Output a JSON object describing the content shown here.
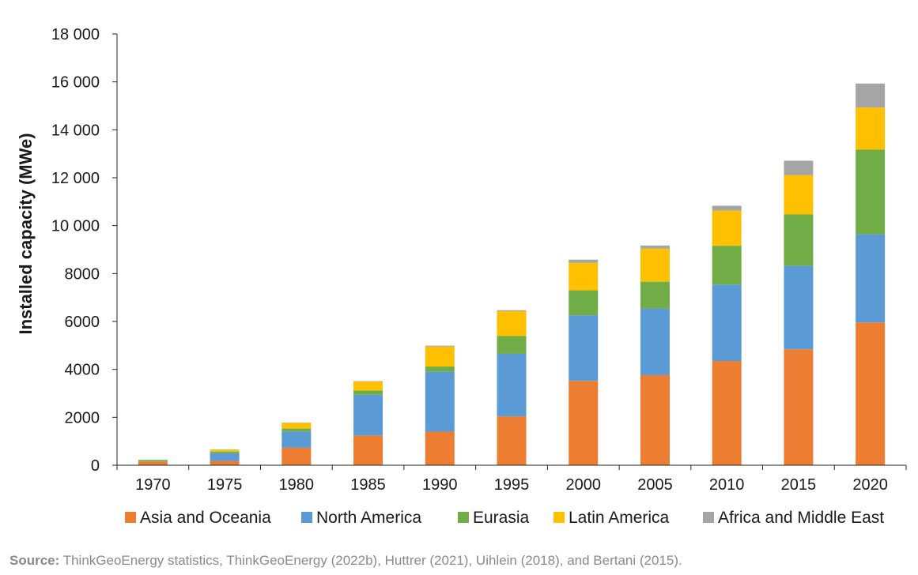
{
  "chart_data": {
    "type": "bar",
    "stacked": true,
    "categories": [
      "1970",
      "1975",
      "1980",
      "1985",
      "1990",
      "1995",
      "2000",
      "2005",
      "2010",
      "2015",
      "2020"
    ],
    "series": [
      {
        "name": "Asia and Oceania",
        "color": "#ED7D31",
        "values": [
          150,
          180,
          730,
          1240,
          1400,
          2040,
          3520,
          3760,
          4350,
          4840,
          5960
        ]
      },
      {
        "name": "North America",
        "color": "#5B9BD5",
        "values": [
          10,
          320,
          680,
          1700,
          2500,
          2610,
          2740,
          2780,
          3190,
          3480,
          3680
        ]
      },
      {
        "name": "Eurasia",
        "color": "#70AD47",
        "values": [
          60,
          70,
          120,
          180,
          220,
          740,
          1040,
          1120,
          1620,
          2150,
          3530
        ]
      },
      {
        "name": "Latin America",
        "color": "#FFC000",
        "values": [
          0,
          80,
          240,
          370,
          830,
          1040,
          1150,
          1380,
          1470,
          1640,
          1760
        ]
      },
      {
        "name": "Africa and Middle East",
        "color": "#A5A5A5",
        "values": [
          0,
          10,
          10,
          20,
          40,
          40,
          130,
          130,
          200,
          600,
          1000
        ]
      }
    ],
    "ylabel": "Installed capacity (MWe)",
    "ylim": [
      0,
      18000
    ],
    "yticks": [
      0,
      2000,
      4000,
      6000,
      8000,
      10000,
      12000,
      14000,
      16000,
      18000
    ],
    "ytick_labels": [
      "0",
      "2000",
      "4000",
      "6000",
      "8000",
      "10 000",
      "12 000",
      "14 000",
      "16 000",
      "18 000"
    ],
    "grid": false,
    "legend_position": "bottom"
  },
  "source": {
    "label": "Source:",
    "text": " ThinkGeoEnergy statistics, ThinkGeoEnergy (2022b), Huttrer (2021), Uihlein (2018), and Bertani (2015)."
  }
}
